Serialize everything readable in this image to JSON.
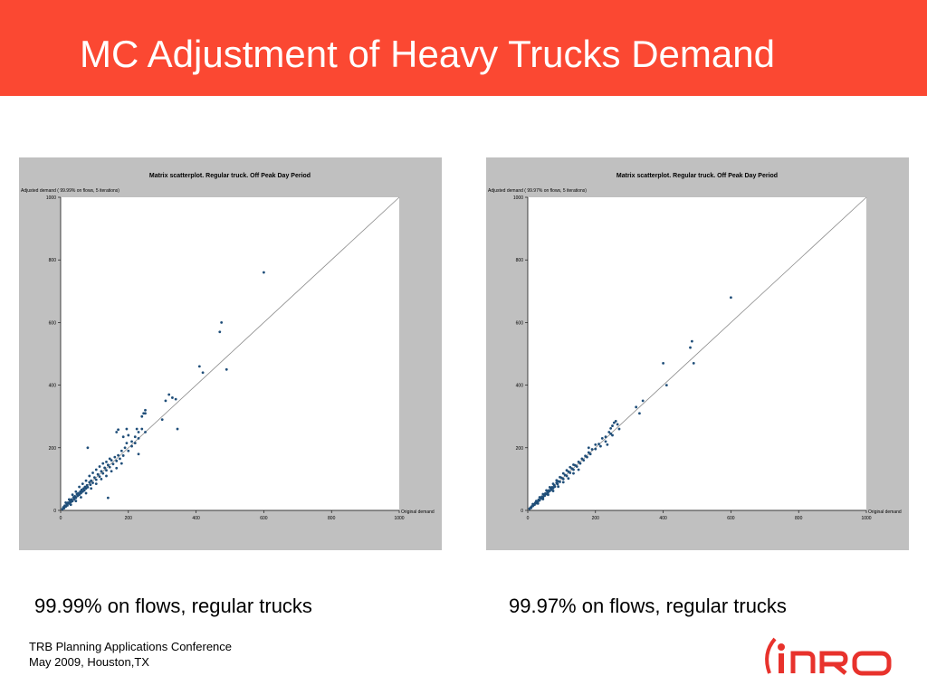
{
  "slide": {
    "title": "MC Adjustment of Heavy Trucks Demand",
    "accent_color": "#fb4832",
    "footer_line1": "TRB Planning Applications Conference",
    "footer_line2": "May 2009, Houston,TX",
    "logo_text": "INRO"
  },
  "captions": [
    "99.99% on flows, regular trucks",
    "99.97% on flows, regular trucks"
  ],
  "chart_data": [
    {
      "type": "scatter",
      "title": "Matrix scatterplot. Regular truck. Off Peak Day Period",
      "ylabel": "Adjusted demand ( 99.99% on flows, 5 iterations)",
      "xlabel": "Original demand",
      "xlim": [
        0,
        1000
      ],
      "ylim": [
        0,
        1000
      ],
      "xticks": [
        0,
        200,
        400,
        600,
        800,
        1000
      ],
      "yticks": [
        0,
        200,
        400,
        600,
        800,
        1000
      ],
      "grid": false,
      "reference_line": "y = x",
      "point_color": "#1f4e79",
      "points": [
        [
          5,
          4
        ],
        [
          8,
          10
        ],
        [
          10,
          7
        ],
        [
          12,
          15
        ],
        [
          15,
          12
        ],
        [
          18,
          20
        ],
        [
          20,
          16
        ],
        [
          22,
          25
        ],
        [
          25,
          22
        ],
        [
          28,
          30
        ],
        [
          30,
          26
        ],
        [
          32,
          35
        ],
        [
          35,
          30
        ],
        [
          38,
          42
        ],
        [
          40,
          36
        ],
        [
          42,
          45
        ],
        [
          45,
          40
        ],
        [
          48,
          52
        ],
        [
          50,
          46
        ],
        [
          52,
          55
        ],
        [
          55,
          50
        ],
        [
          58,
          60
        ],
        [
          60,
          55
        ],
        [
          62,
          66
        ],
        [
          65,
          60
        ],
        [
          68,
          70
        ],
        [
          70,
          64
        ],
        [
          72,
          75
        ],
        [
          75,
          70
        ],
        [
          78,
          80
        ],
        [
          80,
          74
        ],
        [
          85,
          90
        ],
        [
          88,
          82
        ],
        [
          90,
          95
        ],
        [
          95,
          88
        ],
        [
          100,
          105
        ],
        [
          105,
          98
        ],
        [
          110,
          115
        ],
        [
          115,
          108
        ],
        [
          120,
          125
        ],
        [
          125,
          118
        ],
        [
          130,
          136
        ],
        [
          135,
          128
        ],
        [
          140,
          145
        ],
        [
          145,
          138
        ],
        [
          150,
          160
        ],
        [
          155,
          148
        ],
        [
          160,
          170
        ],
        [
          165,
          158
        ],
        [
          170,
          176
        ],
        [
          175,
          165
        ],
        [
          180,
          190
        ],
        [
          185,
          175
        ],
        [
          190,
          200
        ],
        [
          200,
          190
        ],
        [
          15,
          25
        ],
        [
          25,
          35
        ],
        [
          35,
          50
        ],
        [
          45,
          60
        ],
        [
          55,
          75
        ],
        [
          65,
          85
        ],
        [
          75,
          95
        ],
        [
          85,
          110
        ],
        [
          95,
          120
        ],
        [
          105,
          130
        ],
        [
          115,
          140
        ],
        [
          125,
          150
        ],
        [
          135,
          155
        ],
        [
          145,
          165
        ],
        [
          30,
          18
        ],
        [
          45,
          30
        ],
        [
          60,
          42
        ],
        [
          75,
          55
        ],
        [
          90,
          70
        ],
        [
          105,
          85
        ],
        [
          120,
          100
        ],
        [
          135,
          110
        ],
        [
          150,
          125
        ],
        [
          165,
          135
        ],
        [
          180,
          150
        ],
        [
          210,
          220
        ],
        [
          220,
          235
        ],
        [
          230,
          230
        ],
        [
          240,
          260
        ],
        [
          250,
          250
        ],
        [
          230,
          250
        ],
        [
          240,
          300
        ],
        [
          245,
          310
        ],
        [
          250,
          320
        ],
        [
          200,
          240
        ],
        [
          195,
          215
        ],
        [
          210,
          205
        ],
        [
          220,
          215
        ],
        [
          195,
          260
        ],
        [
          165,
          250
        ],
        [
          170,
          258
        ],
        [
          185,
          235
        ],
        [
          225,
          260
        ],
        [
          80,
          200
        ],
        [
          140,
          40
        ],
        [
          230,
          180
        ],
        [
          250,
          310
        ],
        [
          300,
          290
        ],
        [
          310,
          350
        ],
        [
          320,
          370
        ],
        [
          330,
          360
        ],
        [
          340,
          355
        ],
        [
          345,
          260
        ],
        [
          410,
          460
        ],
        [
          420,
          440
        ],
        [
          470,
          570
        ],
        [
          475,
          600
        ],
        [
          490,
          450
        ],
        [
          600,
          760
        ]
      ]
    },
    {
      "type": "scatter",
      "title": "Matrix scatterplot. Regular truck. Off Peak Day Period",
      "ylabel": "Adjusted demand ( 99.97% on flows, 5 iterations)",
      "xlabel": "Original demand",
      "xlim": [
        0,
        1000
      ],
      "ylim": [
        0,
        1000
      ],
      "xticks": [
        0,
        200,
        400,
        600,
        800,
        1000
      ],
      "yticks": [
        0,
        200,
        400,
        600,
        800,
        1000
      ],
      "grid": false,
      "reference_line": "y = x",
      "point_color": "#1f4e79",
      "points": [
        [
          5,
          5
        ],
        [
          8,
          9
        ],
        [
          10,
          8
        ],
        [
          12,
          13
        ],
        [
          15,
          14
        ],
        [
          18,
          19
        ],
        [
          20,
          18
        ],
        [
          22,
          24
        ],
        [
          25,
          23
        ],
        [
          28,
          29
        ],
        [
          30,
          28
        ],
        [
          32,
          34
        ],
        [
          35,
          32
        ],
        [
          38,
          40
        ],
        [
          40,
          38
        ],
        [
          42,
          44
        ],
        [
          45,
          42
        ],
        [
          48,
          50
        ],
        [
          50,
          47
        ],
        [
          52,
          54
        ],
        [
          55,
          52
        ],
        [
          58,
          60
        ],
        [
          60,
          57
        ],
        [
          62,
          64
        ],
        [
          65,
          62
        ],
        [
          68,
          70
        ],
        [
          70,
          66
        ],
        [
          72,
          74
        ],
        [
          75,
          71
        ],
        [
          78,
          80
        ],
        [
          80,
          76
        ],
        [
          85,
          88
        ],
        [
          88,
          84
        ],
        [
          90,
          93
        ],
        [
          95,
          91
        ],
        [
          100,
          104
        ],
        [
          105,
          100
        ],
        [
          110,
          113
        ],
        [
          115,
          110
        ],
        [
          120,
          124
        ],
        [
          125,
          120
        ],
        [
          130,
          134
        ],
        [
          135,
          130
        ],
        [
          140,
          144
        ],
        [
          145,
          140
        ],
        [
          150,
          155
        ],
        [
          155,
          150
        ],
        [
          160,
          165
        ],
        [
          165,
          160
        ],
        [
          170,
          174
        ],
        [
          175,
          170
        ],
        [
          180,
          185
        ],
        [
          185,
          180
        ],
        [
          190,
          195
        ],
        [
          200,
          196
        ],
        [
          15,
          20
        ],
        [
          25,
          30
        ],
        [
          35,
          42
        ],
        [
          45,
          52
        ],
        [
          55,
          64
        ],
        [
          65,
          74
        ],
        [
          75,
          85
        ],
        [
          85,
          96
        ],
        [
          95,
          106
        ],
        [
          105,
          118
        ],
        [
          115,
          128
        ],
        [
          125,
          138
        ],
        [
          135,
          146
        ],
        [
          30,
          22
        ],
        [
          45,
          36
        ],
        [
          60,
          50
        ],
        [
          75,
          62
        ],
        [
          90,
          76
        ],
        [
          105,
          90
        ],
        [
          120,
          102
        ],
        [
          135,
          118
        ],
        [
          150,
          130
        ],
        [
          200,
          210
        ],
        [
          210,
          212
        ],
        [
          220,
          230
        ],
        [
          230,
          235
        ],
        [
          240,
          250
        ],
        [
          245,
          262
        ],
        [
          250,
          270
        ],
        [
          255,
          280
        ],
        [
          260,
          285
        ],
        [
          265,
          275
        ],
        [
          250,
          240
        ],
        [
          230,
          220
        ],
        [
          215,
          205
        ],
        [
          245,
          245
        ],
        [
          270,
          260
        ],
        [
          180,
          200
        ],
        [
          235,
          210
        ],
        [
          320,
          330
        ],
        [
          330,
          310
        ],
        [
          340,
          350
        ],
        [
          400,
          470
        ],
        [
          410,
          400
        ],
        [
          480,
          520
        ],
        [
          485,
          540
        ],
        [
          490,
          470
        ],
        [
          600,
          680
        ]
      ]
    }
  ]
}
